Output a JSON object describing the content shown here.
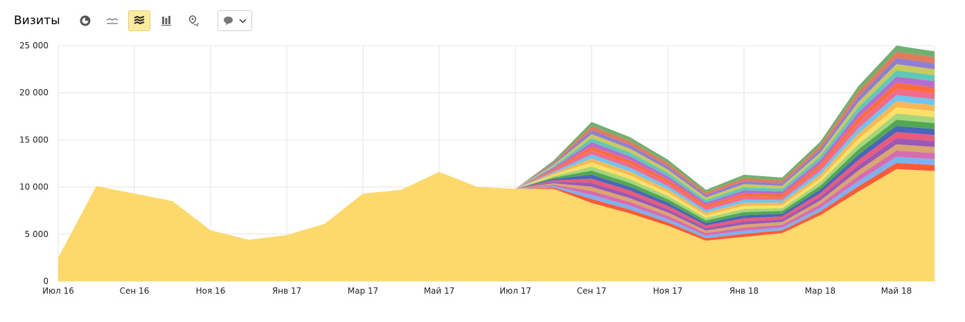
{
  "toolbar": {
    "title": "Визиты",
    "icons": [
      "pie-chart-icon",
      "line-chart-icon",
      "stacked-area-icon",
      "column-chart-icon",
      "map-icon"
    ],
    "active_icon": "stacked-area-icon",
    "annotation_dropdown_icon": "speech-bubble-icon"
  },
  "colors": {
    "base": "#fdd96b",
    "grid": "#e5e5e5",
    "active_bg": "#ffeba0",
    "icon": "#555555",
    "series": [
      "#ff5a36",
      "#7ab3ee",
      "#d76cb0",
      "#d9a66b",
      "#9b59b6",
      "#ea5a7a",
      "#4a66b8",
      "#52a852",
      "#a6d67c",
      "#ffe066",
      "#f7b955",
      "#6ec6f0",
      "#f06b8c",
      "#ff6e3a",
      "#b66cd0",
      "#5fc9b8",
      "#c9c95c",
      "#8e7fd2",
      "#e07c5a",
      "#70b070"
    ]
  },
  "chart_data": {
    "type": "area",
    "stacked": true,
    "ylim": [
      0,
      25000
    ],
    "yticks": [
      "0",
      "5 000",
      "10 000",
      "15 000",
      "20 000",
      "25 000"
    ],
    "xticks": [
      {
        "i": 0,
        "label": "Июл 16"
      },
      {
        "i": 2,
        "label": "Сен 16"
      },
      {
        "i": 4,
        "label": "Ноя 16"
      },
      {
        "i": 6,
        "label": "Янв 17"
      },
      {
        "i": 8,
        "label": "Мар 17"
      },
      {
        "i": 10,
        "label": "Май 17"
      },
      {
        "i": 12,
        "label": "Июл 17"
      },
      {
        "i": 14,
        "label": "Сен 17"
      },
      {
        "i": 16,
        "label": "Ноя 17"
      },
      {
        "i": 18,
        "label": "Янв 18"
      },
      {
        "i": 20,
        "label": "Мар 18"
      },
      {
        "i": 22,
        "label": "Май 18"
      }
    ],
    "x": [
      "2016-07-01",
      "2016-08-01",
      "2016-09-01",
      "2016-10-01",
      "2016-11-01",
      "2016-12-01",
      "2017-01-01",
      "2017-02-01",
      "2017-03-01",
      "2017-04-01",
      "2017-05-01",
      "2017-06-01",
      "2017-07-01",
      "2017-08-01",
      "2017-09-01",
      "2017-10-01",
      "2017-11-01",
      "2017-12-01",
      "2018-01-01",
      "2018-02-01",
      "2018-03-01",
      "2018-04-01",
      "2018-05-01",
      "2018-05-31"
    ],
    "base": [
      2500,
      10100,
      9300,
      8500,
      5400,
      4400,
      4900,
      6100,
      9300,
      9700,
      11600,
      10000,
      9800,
      9800,
      8300,
      7200,
      5900,
      4300,
      4700,
      5100,
      7000,
      9500,
      11900,
      11700
    ],
    "totals": [
      2500,
      10100,
      9300,
      8500,
      5400,
      4400,
      4900,
      6100,
      9300,
      9700,
      11600,
      10000,
      9800,
      12800,
      16900,
      15300,
      12900,
      9700,
      11300,
      11000,
      14800,
      20700,
      25000,
      24400
    ]
  }
}
